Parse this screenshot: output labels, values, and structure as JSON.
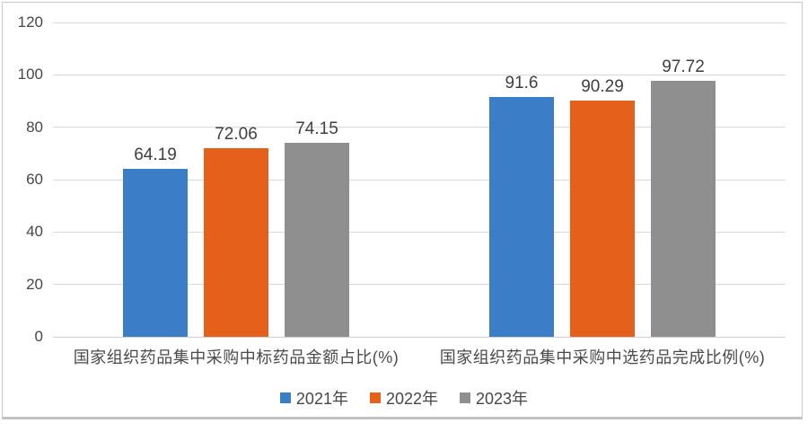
{
  "chart_data": {
    "type": "bar",
    "title": "",
    "categories": [
      "国家组织药品集中采购中标药品金额占比(%)",
      "国家组织药品集中采购中选药品完成比例(%)"
    ],
    "series": [
      {
        "name": "2021年",
        "color": "#3b7dc6",
        "values": [
          64.19,
          91.6
        ],
        "labels": [
          "64.19",
          "91.6"
        ]
      },
      {
        "name": "2022年",
        "color": "#e5611b",
        "values": [
          72.06,
          90.29
        ],
        "labels": [
          "72.06",
          "90.29"
        ]
      },
      {
        "name": "2023年",
        "color": "#8f8f8f",
        "values": [
          74.15,
          97.72
        ],
        "labels": [
          "74.15",
          "97.72"
        ]
      }
    ],
    "xlabel": "",
    "ylabel": "",
    "ylim": [
      0,
      120
    ],
    "yticks": [
      0,
      20,
      40,
      60,
      80,
      100,
      120
    ],
    "grid": true,
    "legend_position": "bottom",
    "colors": {
      "grid": "#d9d9d9",
      "axis_line": "#d0d0d0",
      "axis_text": "#474747",
      "data_label_text": "#3f3f3f",
      "frame_border": "#c9c9c9"
    }
  }
}
